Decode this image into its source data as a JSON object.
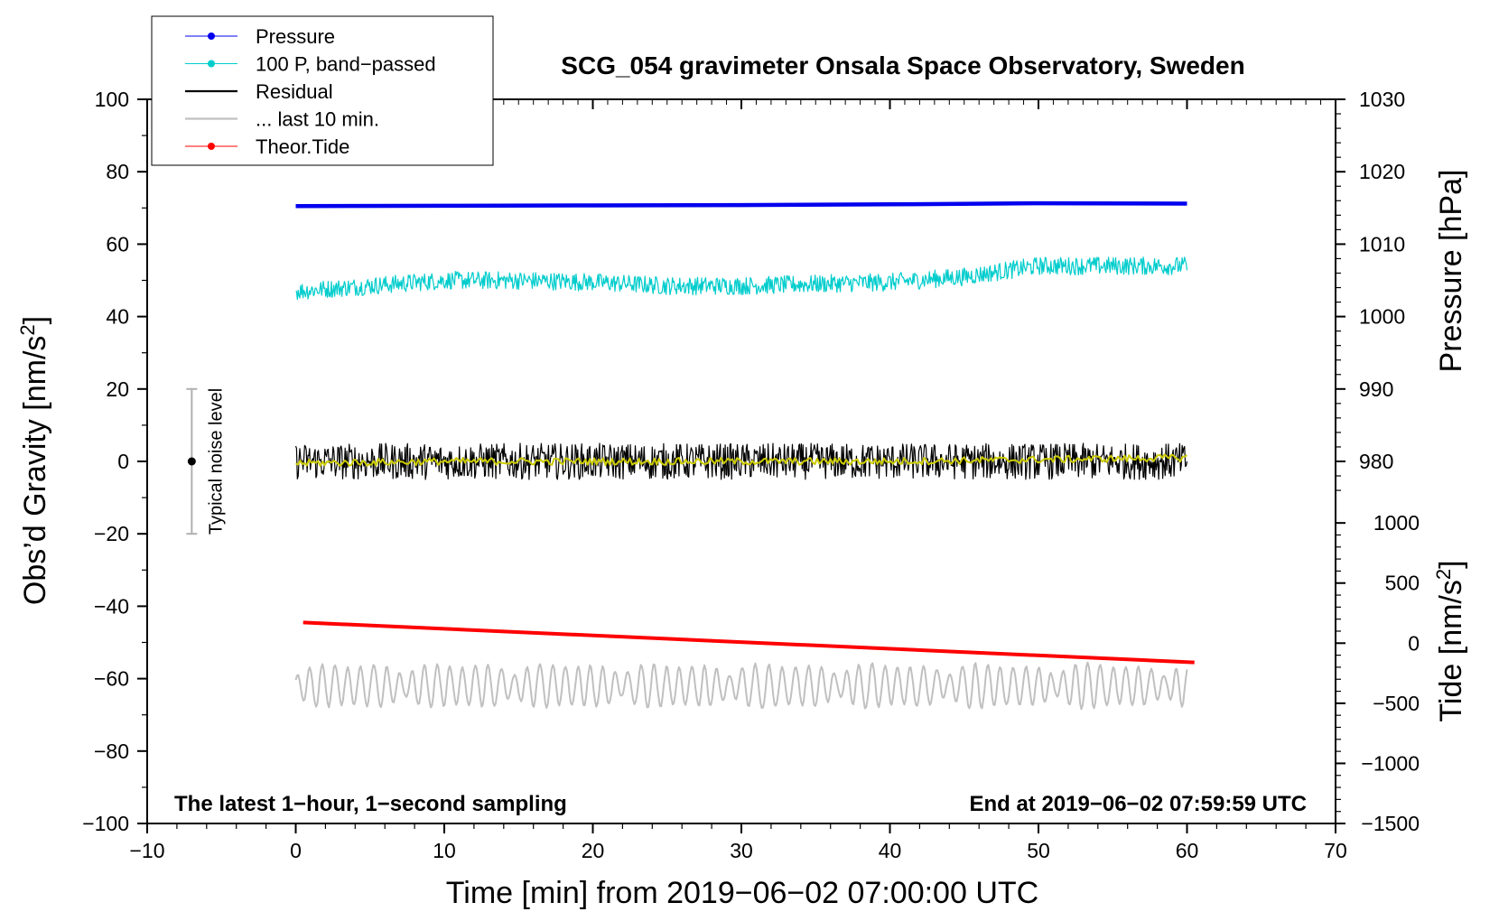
{
  "chart_data": {
    "type": "line",
    "title": "SCG_054 gravimeter Onsala Space Observatory, Sweden",
    "xlabel": "Time [min] from 2019−06−02 07:00:00 UTC",
    "ylabel_left": "Obs’d Gravity [nm/s²]",
    "ylabel_left_base": "Obs’d Gravity [nm/s",
    "ylabel_right_top": "Pressure [hPa]",
    "ylabel_right_bottom": "Tide [nm/s²]",
    "ylabel_right_bottom_base": "Tide [nm/s",
    "superscript": "2",
    "bracket_close": "]",
    "xlim": [
      -10,
      70
    ],
    "ylim_left": [
      -100,
      100
    ],
    "x_ticks": [
      -10,
      0,
      10,
      20,
      30,
      40,
      50,
      60,
      70
    ],
    "x_tick_labels": [
      "−10",
      "0",
      "10",
      "20",
      "30",
      "40",
      "50",
      "60",
      "70"
    ],
    "y_ticks": [
      100,
      80,
      60,
      40,
      20,
      0,
      -20,
      -40,
      -60,
      -80,
      -100
    ],
    "y_tick_labels": [
      "100",
      "80",
      "60",
      "40",
      "20",
      "0",
      "−20",
      "−40",
      "−60",
      "−80",
      "−100"
    ],
    "pressure_axis": {
      "ticks": [
        1030,
        1020,
        1010,
        1000,
        990,
        980
      ],
      "tick_labels": [
        "1030",
        "1020",
        "1010",
        "1000",
        "990",
        "980"
      ],
      "gravity_equivalent": {
        "1000": 40,
        "1020": 80
      }
    },
    "tide_axis": {
      "ticks": [
        1000,
        500,
        0,
        -500,
        -1000,
        -1500
      ],
      "tick_labels": [
        "1000",
        "500",
        "0",
        "−500",
        "−1000",
        "−1500"
      ],
      "gravity_equivalent": {
        "1000": -17,
        "-1500": -100
      }
    },
    "series": [
      {
        "name": "Pressure",
        "color": "#0000ee",
        "style": "line+dot",
        "x": [
          0,
          10,
          20,
          30,
          40,
          50,
          60
        ],
        "y": [
          70.5,
          70.6,
          70.7,
          70.8,
          71.0,
          71.3,
          71.2
        ]
      },
      {
        "name": "100 P, band−passed",
        "color": "#00cccc",
        "style": "line+dot",
        "x": [
          0,
          5,
          10,
          15,
          20,
          25,
          30,
          35,
          40,
          45,
          50,
          55,
          60
        ],
        "y": [
          47,
          48.5,
          50,
          50,
          49.5,
          48.5,
          48.5,
          49,
          49.5,
          51,
          54,
          54,
          54
        ],
        "noise_amplitude": 2.5
      },
      {
        "name": "Residual",
        "color": "#000000",
        "style": "line",
        "x": [
          0,
          10,
          20,
          30,
          40,
          50,
          60
        ],
        "y": [
          0,
          0,
          0,
          0,
          0,
          0,
          0
        ],
        "noise_amplitude": 5
      },
      {
        "name": "Residual (smoothed)",
        "color": "#cccc00",
        "style": "line",
        "x": [
          0,
          10,
          20,
          30,
          40,
          50,
          60
        ],
        "y": [
          -0.5,
          0,
          0,
          0,
          0,
          0.5,
          1
        ]
      },
      {
        "name": "... last 10 min.",
        "color": "#c0c0c0",
        "style": "line",
        "x": [
          0,
          60
        ],
        "y": [
          -62,
          -62
        ],
        "oscillation_amplitude": 6
      },
      {
        "name": "Theor.Tide",
        "color": "#ff0000",
        "style": "line+dot",
        "x": [
          0.5,
          60.5
        ],
        "y": [
          -44.5,
          -55.5
        ]
      }
    ],
    "legend": {
      "placement": "top-left",
      "entries": [
        "Pressure",
        "100 P, band−passed",
        "Residual",
        "... last 10 min.",
        "Theor.Tide"
      ]
    },
    "noise_marker": {
      "label": "Typical noise level",
      "x": -7,
      "y": 0,
      "range": [
        -20,
        20
      ]
    },
    "annotations": {
      "bottom_left": "The latest 1−hour, 1−second sampling",
      "bottom_right": "End at 2019−06−02 07:59:59 UTC"
    }
  }
}
